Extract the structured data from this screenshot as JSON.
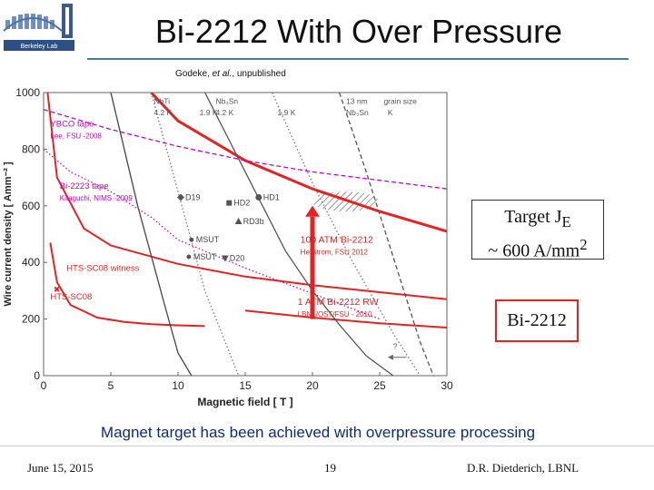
{
  "logo": {
    "text": "Berkeley Lab"
  },
  "slide": {
    "title": "Bi-2212 With Over Pressure",
    "subtitle_authors": "Godeke, ",
    "subtitle_etal": "et al.",
    "subtitle_rest": ", unpublished",
    "caption": "Magnet target has been achieved with overpressure processing",
    "box_target_line1": "Target J",
    "box_target_sub": "E",
    "box_target_line2": "~ 600 A/mm",
    "box_target_sup": "2",
    "box_material": "Bi-2212"
  },
  "footer": {
    "date": "June 15, 2015",
    "page": "19",
    "author": "D.R. Dietderich, LBNL"
  },
  "colors": {
    "accent_red": "#e52222",
    "magenta": "#c400c4",
    "rule": "#3f7f8e",
    "caption": "#0b2b7a"
  },
  "chart_data": {
    "type": "line",
    "xlabel": "Magnetic field [ T ]",
    "ylabel": "Wire current density [ Amm⁻² ]",
    "xlim": [
      0,
      30
    ],
    "ylim": [
      0,
      1000
    ],
    "xticks": [
      0,
      5,
      10,
      15,
      20,
      25,
      30
    ],
    "yticks": [
      0,
      200,
      400,
      600,
      800,
      1000
    ],
    "grid": false,
    "series": [
      {
        "name": "100 ATM Bi-2212",
        "note": "Hellstrom, FSU 2012",
        "color": "#e52222",
        "style": "solid",
        "x": [
          8,
          10,
          15,
          20,
          25,
          30
        ],
        "y": [
          1000,
          900,
          760,
          660,
          580,
          510
        ]
      },
      {
        "name": "1 ATM Bi-2212 RW",
        "note": "LBNL/OST/FSU - 2010",
        "color": "#e52222",
        "style": "solid",
        "x": [
          15,
          20,
          25,
          30
        ],
        "y": [
          230,
          205,
          185,
          170
        ]
      },
      {
        "name": "HTS-SC08 witness",
        "color": "#e52222",
        "style": "solid",
        "x": [
          0.3,
          1,
          3,
          5,
          10,
          15,
          20,
          25,
          30
        ],
        "y": [
          1000,
          700,
          520,
          460,
          395,
          350,
          320,
          295,
          270
        ]
      },
      {
        "name": "HTS-SC08",
        "color": "#e52222",
        "style": "solid",
        "x": [
          0.5,
          1,
          2,
          4,
          6,
          8,
          10,
          12
        ],
        "y": [
          470,
          330,
          250,
          205,
          190,
          182,
          178,
          175
        ]
      },
      {
        "name": "YBCO tape",
        "note": "Lee, FSU -2008",
        "color": "#c400c4",
        "style": "dashed",
        "x": [
          0,
          5,
          10,
          15,
          20,
          25,
          30
        ],
        "y": [
          940,
          870,
          810,
          760,
          720,
          690,
          660
        ]
      },
      {
        "name": "Bi-2223 tape",
        "note": "Kitaguchi, NIMS -2009",
        "color": "#c400c4",
        "style": "dotted",
        "x": [
          0,
          2,
          5,
          8,
          10,
          15,
          20,
          25
        ],
        "y": [
          800,
          720,
          650,
          560,
          480,
          380,
          290,
          200
        ]
      },
      {
        "name": "NbTi 4.2 K",
        "color": "#444444",
        "style": "solid",
        "x": [
          5,
          7,
          9,
          10,
          11
        ],
        "y": [
          1000,
          600,
          250,
          80,
          0
        ]
      },
      {
        "name": "NbTi 1.9 K",
        "color": "#777777",
        "style": "dotted",
        "x": [
          8,
          10,
          12,
          14,
          14.5
        ],
        "y": [
          1000,
          650,
          300,
          60,
          0
        ]
      },
      {
        "name": "Nb3Sn 4.2 K",
        "color": "#555555",
        "style": "solid",
        "x": [
          12,
          15,
          18,
          20,
          22,
          24,
          26
        ],
        "y": [
          1000,
          720,
          440,
          300,
          180,
          70,
          0
        ]
      },
      {
        "name": "Nb3Sn 1.9 K",
        "color": "#777777",
        "style": "dotted",
        "x": [
          17,
          20,
          23,
          26,
          28
        ],
        "y": [
          1000,
          680,
          400,
          150,
          0
        ]
      },
      {
        "name": "13 nm grain size Nb3Sn",
        "color": "#555555",
        "style": "dashed",
        "x": [
          22,
          24,
          26,
          28,
          29
        ],
        "y": [
          1000,
          720,
          420,
          120,
          0
        ]
      }
    ],
    "points": [
      {
        "label": "D19",
        "x": 10.2,
        "y": 630,
        "marker": "diamond"
      },
      {
        "label": "HD2",
        "x": 13.8,
        "y": 610,
        "marker": "square"
      },
      {
        "label": "HD1",
        "x": 16.0,
        "y": 630,
        "marker": "circle"
      },
      {
        "label": "MSUT",
        "x": 11.0,
        "y": 480,
        "marker": "star"
      },
      {
        "label": "RD3b",
        "x": 14.5,
        "y": 545,
        "marker": "triangle"
      },
      {
        "label": "MSUT",
        "x": 10.8,
        "y": 420,
        "marker": "star"
      },
      {
        "label": "D20",
        "x": 13.5,
        "y": 415,
        "marker": "triangle-down"
      }
    ],
    "curve_labels": [
      {
        "text": "NbTi",
        "x": 8.2,
        "y": 960
      },
      {
        "text": "4.2 K",
        "x": 8.2,
        "y": 920
      },
      {
        "text": "1.9 K",
        "x": 11.6,
        "y": 920
      },
      {
        "text": "Nb₃Sn",
        "x": 12.8,
        "y": 960
      },
      {
        "text": "4.2 K",
        "x": 12.8,
        "y": 920
      },
      {
        "text": "1.9 K",
        "x": 17.4,
        "y": 920
      },
      {
        "text": "13 nm",
        "x": 22.5,
        "y": 960
      },
      {
        "text": "Nb₃Sn",
        "x": 22.5,
        "y": 920
      },
      {
        "text": "grain size",
        "x": 25.3,
        "y": 960
      },
      {
        "text": "K",
        "x": 25.6,
        "y": 920
      },
      {
        "text": "?",
        "x": 26,
        "y": 95
      }
    ],
    "annotations": {
      "target_region": {
        "x": [
          20,
          25
        ],
        "y": [
          580,
          650
        ]
      },
      "arrow": {
        "x": 20,
        "y_from": 200,
        "y_to": 600
      },
      "question_arrow": {
        "x_from": 27,
        "x_to": 25.6,
        "y": 65
      }
    },
    "legend_placement": "labels-on-curves"
  }
}
